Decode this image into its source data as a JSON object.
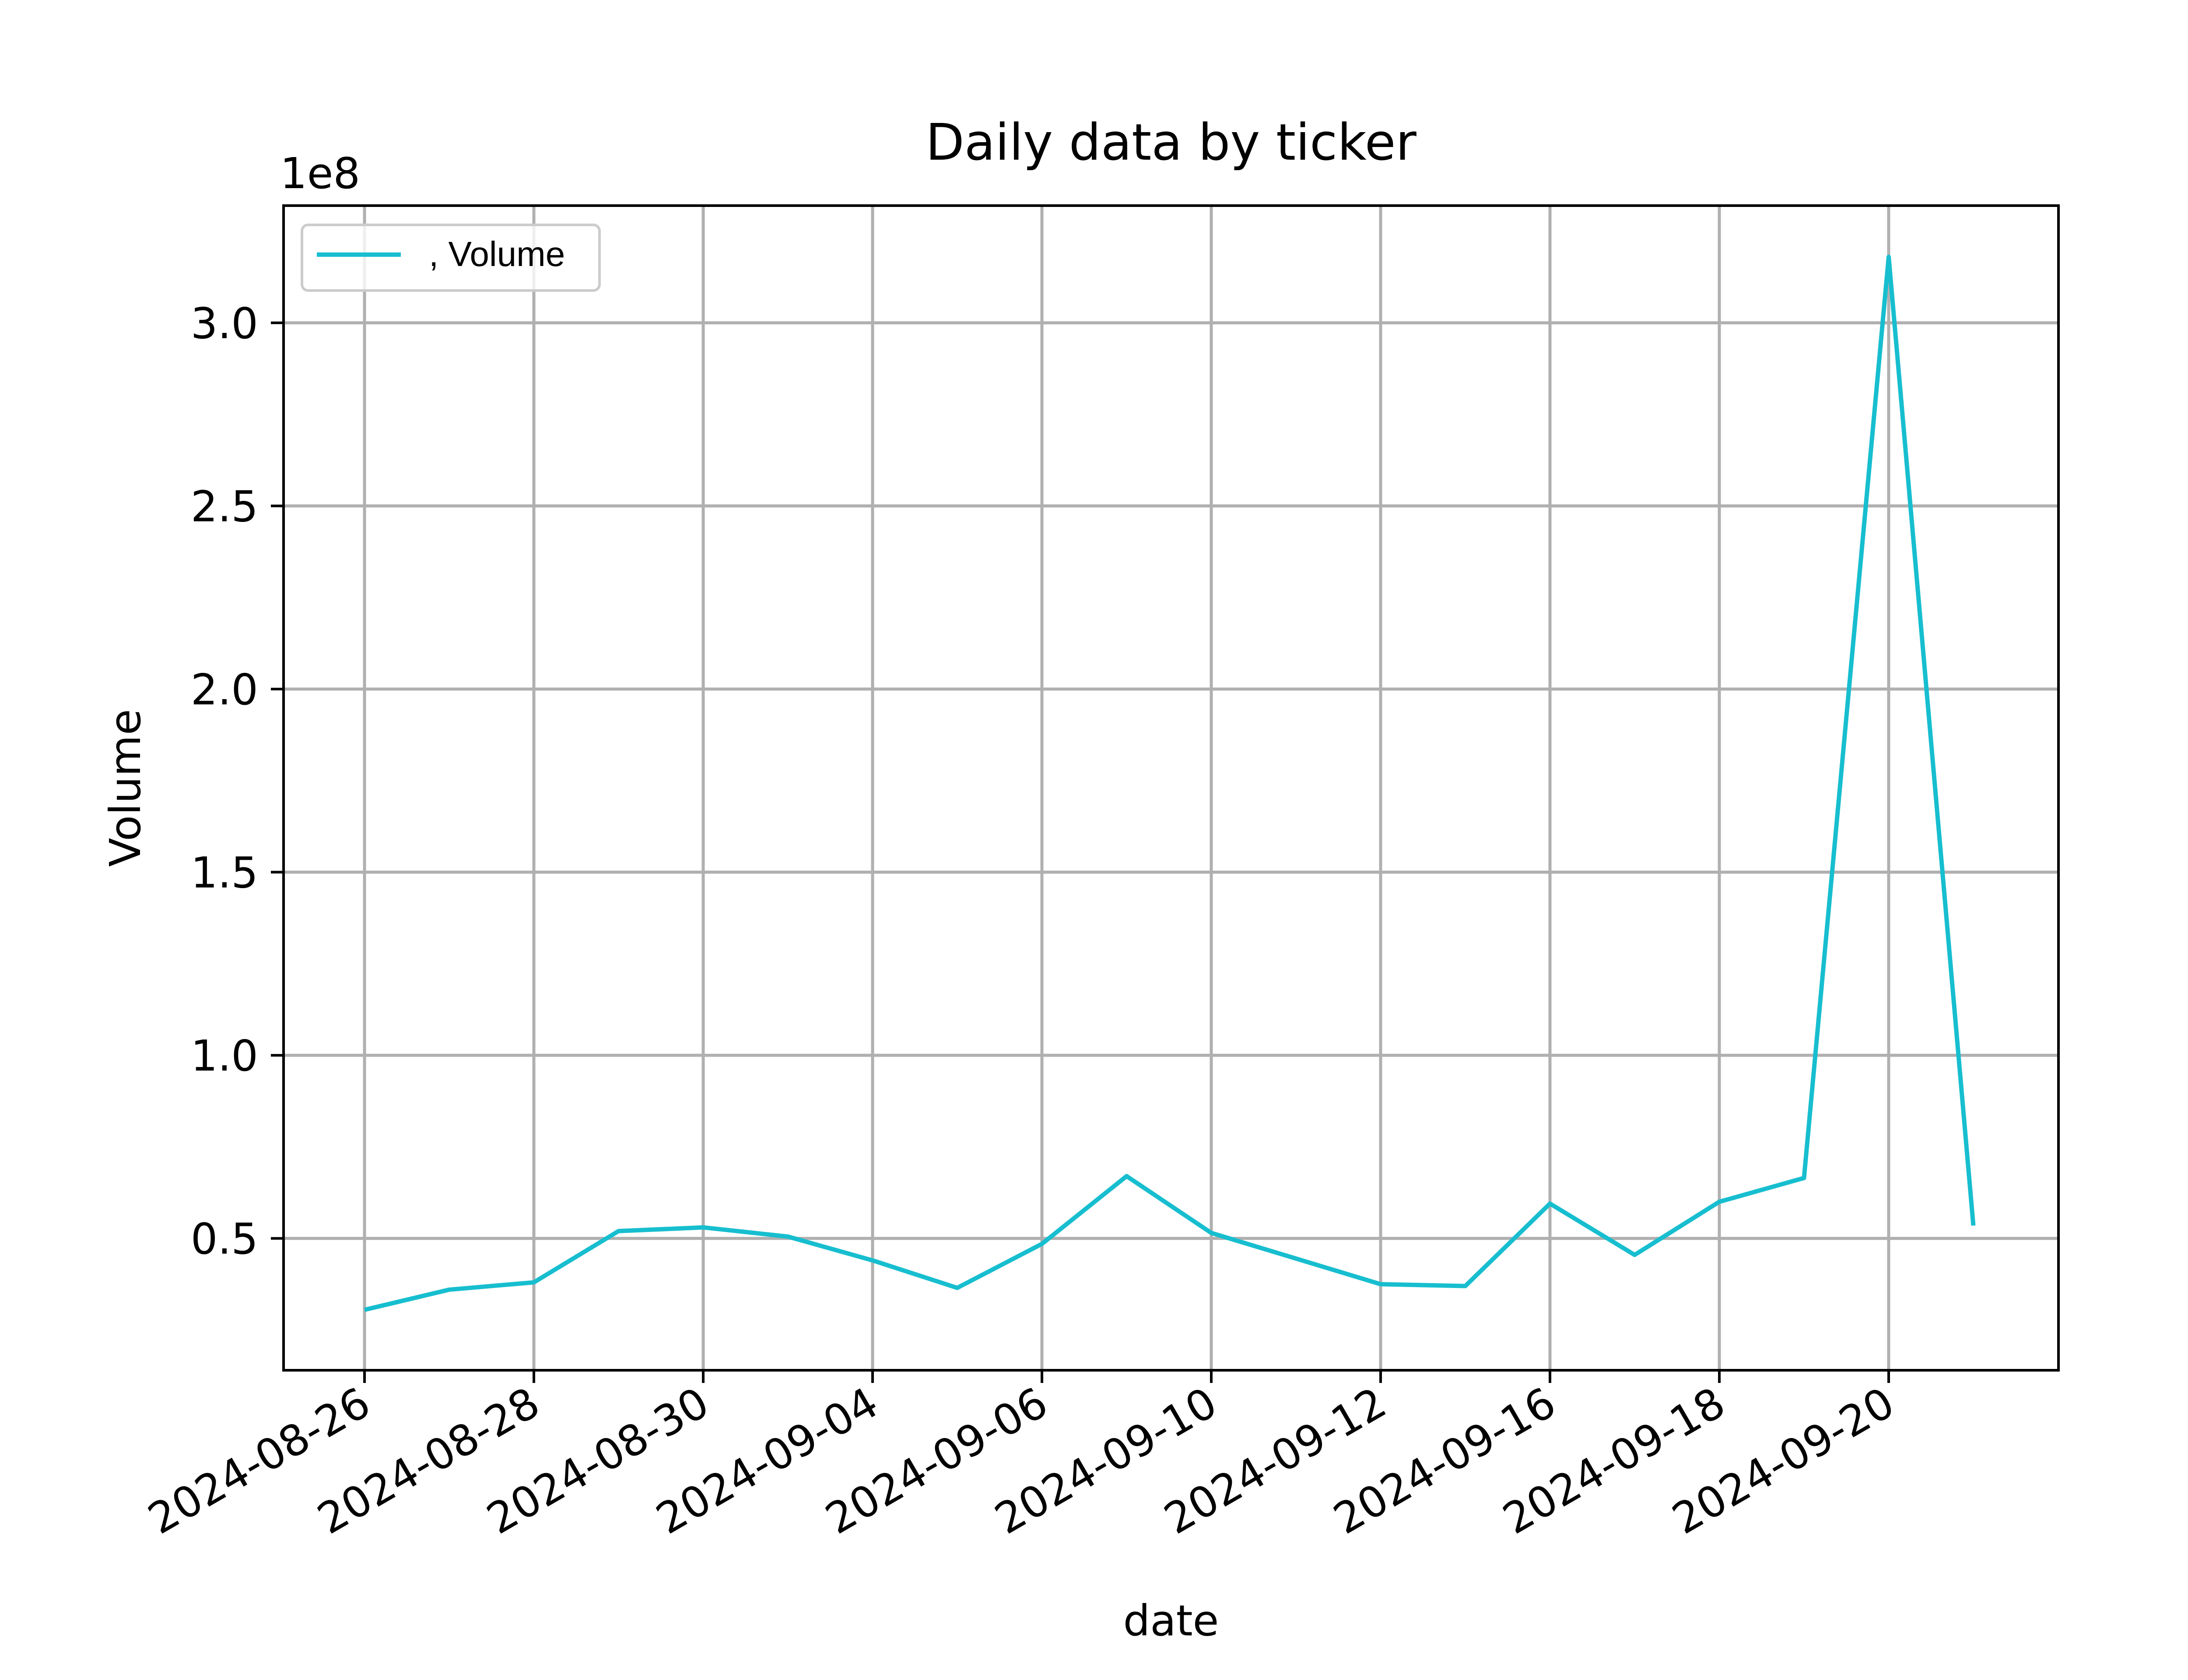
{
  "chart_data": {
    "type": "line",
    "title": "Daily data by ticker",
    "xlabel": "date",
    "ylabel": "Volume",
    "y_offset_label": "1e8",
    "y_multiplier": 100000000,
    "ylim": [
      14000000,
      332000000
    ],
    "yticks": [
      50000000,
      100000000,
      150000000,
      200000000,
      250000000,
      300000000
    ],
    "ytick_labels": [
      "0.5",
      "1.0",
      "1.5",
      "2.0",
      "2.5",
      "3.0"
    ],
    "xticks": [
      "2024-08-26",
      "2024-08-28",
      "2024-08-30",
      "2024-09-04",
      "2024-09-06",
      "2024-09-10",
      "2024-09-12",
      "2024-09-16",
      "2024-09-18",
      "2024-09-20"
    ],
    "x": [
      "2024-08-26",
      "2024-08-27",
      "2024-08-28",
      "2024-08-29",
      "2024-08-30",
      "2024-09-03",
      "2024-09-04",
      "2024-09-05",
      "2024-09-06",
      "2024-09-09",
      "2024-09-10",
      "2024-09-11",
      "2024-09-12",
      "2024-09-13",
      "2024-09-16",
      "2024-09-17",
      "2024-09-18",
      "2024-09-19",
      "2024-09-20",
      "2024-09-23"
    ],
    "series": [
      {
        "name": ", Volume",
        "color": "#17becf",
        "values": [
          30500000,
          36000000,
          38000000,
          52000000,
          53000000,
          50500000,
          44000000,
          36500000,
          48500000,
          67000000,
          51500000,
          44500000,
          37500000,
          37000000,
          59500000,
          45500000,
          60000000,
          66500000,
          318000000,
          53500000
        ]
      }
    ],
    "grid": true,
    "legend_position": "top-left"
  }
}
